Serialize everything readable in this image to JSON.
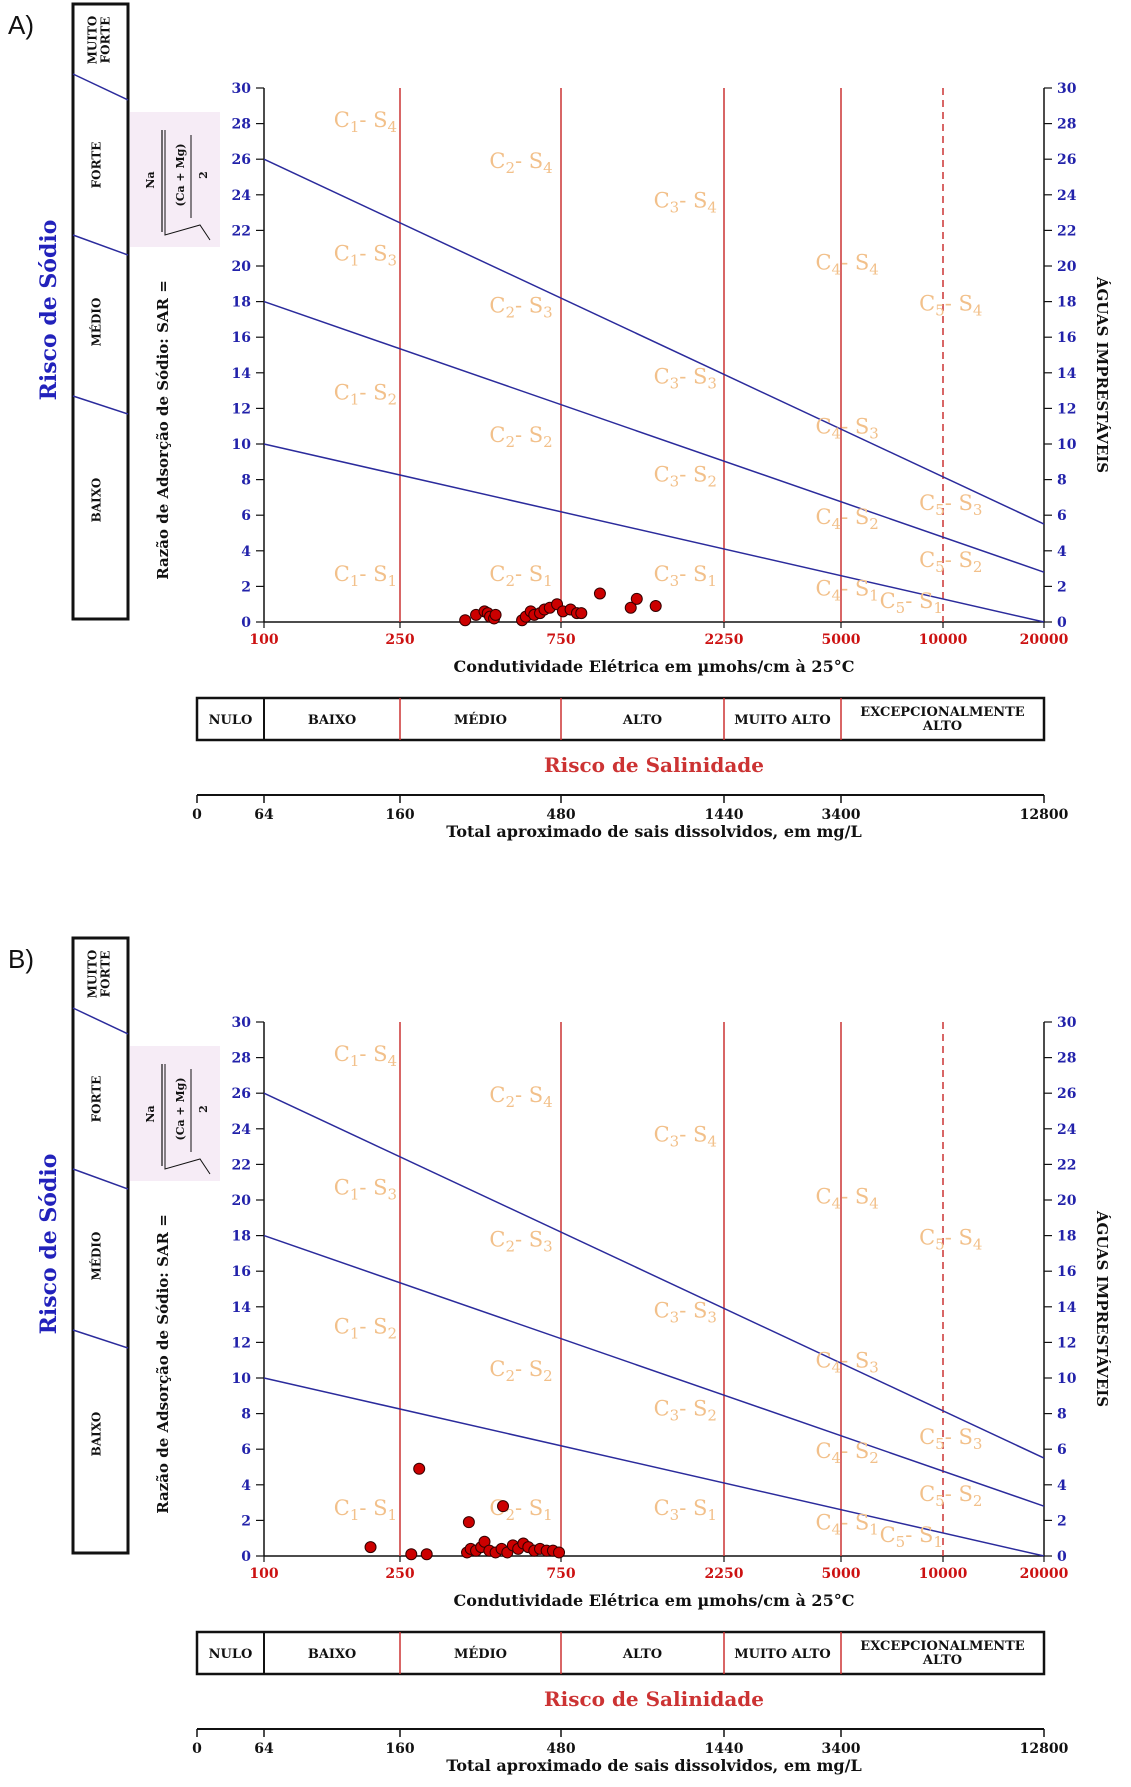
{
  "chart_data": [
    {
      "type": "scatter",
      "panel_label": "A)",
      "ylabel": "Razão de Adsorção de Sódio: SAR =",
      "sar_formula": {
        "numerator": "Na",
        "denominator_top": "(Ca + Mg)",
        "denominator_bottom": "2"
      },
      "right_label": "ÁGUAS IMPRESTÁVEIS",
      "sodium_risk_title": "Risco de Sódio",
      "sodium_risk_levels": [
        "MUITO FORTE",
        "FORTE",
        "MÉDIO",
        "BAIXO"
      ],
      "xlabel": "Condutividade Elétrica em µmohs/cm à 25°C",
      "x_ticks": [
        "100",
        "250",
        "750",
        "2250",
        "5000",
        "10000",
        "20000"
      ],
      "ylim": [
        0,
        30
      ],
      "y_ticks": [
        "0",
        "2",
        "4",
        "6",
        "8",
        "10",
        "12",
        "14",
        "16",
        "18",
        "20",
        "22",
        "24",
        "26",
        "28",
        "30"
      ],
      "salinity_classes": [
        "NULO",
        "BAIXO",
        "MÉDIO",
        "ALTO",
        "MUITO ALTO",
        "EXCEPCIONALMENTE ALTO"
      ],
      "salinity_title": "Risco de Salinidade",
      "tds_ticks": [
        "0",
        "64",
        "160",
        "480",
        "1440",
        "3400",
        "12800"
      ],
      "tds_label": "Total aproximado de sais dissolvidos, em mg/L",
      "zones": [
        {
          "c": "1",
          "s": "4"
        },
        {
          "c": "2",
          "s": "4"
        },
        {
          "c": "3",
          "s": "4"
        },
        {
          "c": "4",
          "s": "4"
        },
        {
          "c": "5",
          "s": "4"
        },
        {
          "c": "1",
          "s": "3"
        },
        {
          "c": "2",
          "s": "3"
        },
        {
          "c": "3",
          "s": "3"
        },
        {
          "c": "4",
          "s": "3"
        },
        {
          "c": "5",
          "s": "3"
        },
        {
          "c": "1",
          "s": "2"
        },
        {
          "c": "2",
          "s": "2"
        },
        {
          "c": "3",
          "s": "2"
        },
        {
          "c": "4",
          "s": "2"
        },
        {
          "c": "5",
          "s": "2"
        },
        {
          "c": "1",
          "s": "1"
        },
        {
          "c": "2",
          "s": "1"
        },
        {
          "c": "3",
          "s": "1"
        },
        {
          "c": "4",
          "s": "1"
        },
        {
          "c": "5",
          "s": "1"
        }
      ],
      "points": [
        {
          "x": 390,
          "y": 0.1
        },
        {
          "x": 420,
          "y": 0.4
        },
        {
          "x": 445,
          "y": 0.6
        },
        {
          "x": 455,
          "y": 0.5
        },
        {
          "x": 462,
          "y": 0.3
        },
        {
          "x": 475,
          "y": 0.2
        },
        {
          "x": 480,
          "y": 0.4
        },
        {
          "x": 575,
          "y": 0.1
        },
        {
          "x": 590,
          "y": 0.3
        },
        {
          "x": 610,
          "y": 0.6
        },
        {
          "x": 625,
          "y": 0.4
        },
        {
          "x": 650,
          "y": 0.5
        },
        {
          "x": 670,
          "y": 0.7
        },
        {
          "x": 695,
          "y": 0.8
        },
        {
          "x": 730,
          "y": 1.0
        },
        {
          "x": 760,
          "y": 0.6
        },
        {
          "x": 800,
          "y": 0.7
        },
        {
          "x": 835,
          "y": 0.5
        },
        {
          "x": 860,
          "y": 0.5
        },
        {
          "x": 975,
          "y": 1.6
        },
        {
          "x": 1200,
          "y": 0.8
        },
        {
          "x": 1250,
          "y": 1.3
        },
        {
          "x": 1420,
          "y": 0.9
        }
      ]
    },
    {
      "type": "scatter",
      "panel_label": "B)",
      "ylabel": "Razão de Adsorção de Sódio: SAR =",
      "sar_formula": {
        "numerator": "Na",
        "denominator_top": "(Ca + Mg)",
        "denominator_bottom": "2"
      },
      "right_label": "ÁGUAS IMPRESTÁVEIS",
      "sodium_risk_title": "Risco de Sódio",
      "sodium_risk_levels": [
        "MUITO FORTE",
        "FORTE",
        "MÉDIO",
        "BAIXO"
      ],
      "xlabel": "Condutividade Elétrica em µmohs/cm à 25°C",
      "x_ticks": [
        "100",
        "250",
        "750",
        "2250",
        "5000",
        "10000",
        "20000"
      ],
      "ylim": [
        0,
        30
      ],
      "y_ticks": [
        "0",
        "2",
        "4",
        "6",
        "8",
        "10",
        "12",
        "14",
        "16",
        "18",
        "20",
        "22",
        "24",
        "26",
        "28",
        "30"
      ],
      "salinity_classes": [
        "NULO",
        "BAIXO",
        "MÉDIO",
        "ALTO",
        "MUITO ALTO",
        "EXCEPCIONALMENTE ALTO"
      ],
      "salinity_title": "Risco de Salinidade",
      "tds_ticks": [
        "0",
        "64",
        "160",
        "480",
        "1440",
        "3400",
        "12800"
      ],
      "tds_label": "Total aproximado de sais dissolvidos, em mg/L",
      "zones": [
        {
          "c": "1",
          "s": "4"
        },
        {
          "c": "2",
          "s": "4"
        },
        {
          "c": "3",
          "s": "4"
        },
        {
          "c": "4",
          "s": "4"
        },
        {
          "c": "5",
          "s": "4"
        },
        {
          "c": "1",
          "s": "3"
        },
        {
          "c": "2",
          "s": "3"
        },
        {
          "c": "3",
          "s": "3"
        },
        {
          "c": "4",
          "s": "3"
        },
        {
          "c": "5",
          "s": "3"
        },
        {
          "c": "1",
          "s": "2"
        },
        {
          "c": "2",
          "s": "2"
        },
        {
          "c": "3",
          "s": "2"
        },
        {
          "c": "4",
          "s": "2"
        },
        {
          "c": "5",
          "s": "2"
        },
        {
          "c": "1",
          "s": "1"
        },
        {
          "c": "2",
          "s": "1"
        },
        {
          "c": "3",
          "s": "1"
        },
        {
          "c": "4",
          "s": "1"
        },
        {
          "c": "5",
          "s": "1"
        }
      ],
      "points": [
        {
          "x": 205,
          "y": 0.5
        },
        {
          "x": 270,
          "y": 0.1
        },
        {
          "x": 285,
          "y": 4.9
        },
        {
          "x": 300,
          "y": 0.1
        },
        {
          "x": 395,
          "y": 0.2
        },
        {
          "x": 400,
          "y": 1.9
        },
        {
          "x": 405,
          "y": 0.4
        },
        {
          "x": 420,
          "y": 0.3
        },
        {
          "x": 435,
          "y": 0.5
        },
        {
          "x": 445,
          "y": 0.8
        },
        {
          "x": 460,
          "y": 0.3
        },
        {
          "x": 480,
          "y": 0.2
        },
        {
          "x": 500,
          "y": 0.4
        },
        {
          "x": 505,
          "y": 2.8
        },
        {
          "x": 520,
          "y": 0.2
        },
        {
          "x": 540,
          "y": 0.6
        },
        {
          "x": 560,
          "y": 0.4
        },
        {
          "x": 580,
          "y": 0.7
        },
        {
          "x": 600,
          "y": 0.5
        },
        {
          "x": 625,
          "y": 0.3
        },
        {
          "x": 650,
          "y": 0.4
        },
        {
          "x": 680,
          "y": 0.3
        },
        {
          "x": 710,
          "y": 0.3
        },
        {
          "x": 740,
          "y": 0.2
        }
      ]
    }
  ],
  "style": {
    "sodium_line_color": "#2b2b9c",
    "salinity_line_color": "#cc3333",
    "zone_label_color": "#f2c08a",
    "axis_tick_color_x": "#cc1111",
    "axis_tick_color_y": "#2222aa",
    "point_color": "#cc0000",
    "risk_title_color": "#2222bb"
  }
}
